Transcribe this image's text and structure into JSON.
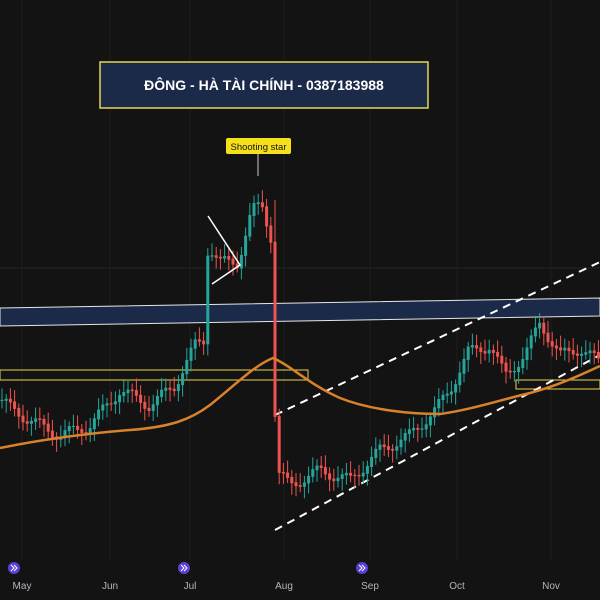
{
  "banner": {
    "title": "ĐÔNG - HÀ TÀI CHÍNH - 0387183988"
  },
  "annotation": {
    "label": "Shooting star"
  },
  "time_axis": {
    "months": [
      "May",
      "Jun",
      "Jul",
      "Aug",
      "Sep",
      "Oct",
      "Nov"
    ]
  }
}
